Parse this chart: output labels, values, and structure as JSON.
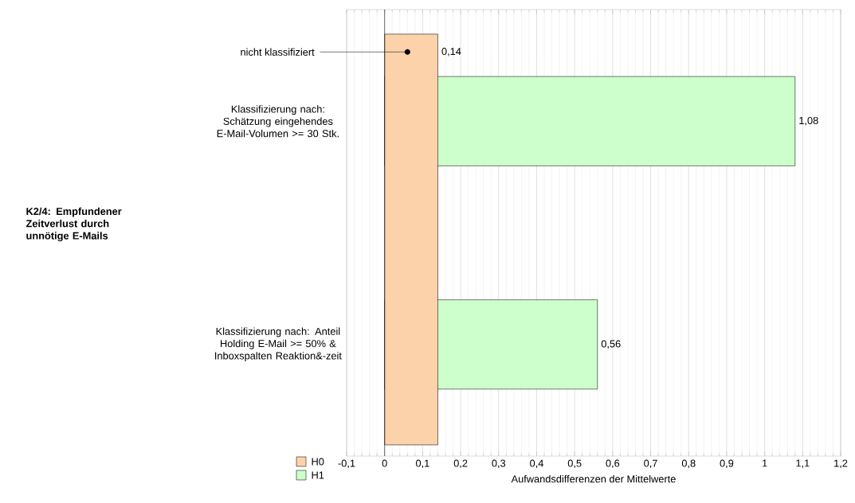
{
  "chart_data": {
    "type": "bar",
    "orientation": "horizontal",
    "xlabel": "Aufwandsdifferenzen der Mittelwerte",
    "categories": [
      "Klassifizierung nach: Schätzung eingehendes E-Mail-Volumen >= 30 Stk.",
      "Klassifizierung nach: Anteil Holding E-Mail >= 50% & Inboxspalten Reaktion&-zeit"
    ],
    "series": [
      {
        "name": "H1",
        "color": "#ccffcc",
        "values": [
          1.08,
          0.56
        ],
        "value_labels": [
          "1,08",
          "0,56"
        ]
      }
    ],
    "bands": [
      {
        "axis": "x",
        "from": 0,
        "to": 0.14,
        "label": "H0",
        "color": "#fcd2aa"
      }
    ],
    "annotations": [
      {
        "text": "nicht klassifiziert",
        "x": 0.06
      },
      {
        "text": "0,14",
        "x": 0.14
      },
      "K2/4: Empfundener Zeitverlust durch unnötige E-Mails"
    ],
    "xlim": [
      -0.1,
      1.2
    ],
    "xticks": [
      {
        "value": -0.1,
        "label": "-0,1"
      },
      0,
      {
        "value": 0.1,
        "label": "0,1"
      },
      {
        "value": 0.2,
        "label": "0,2"
      },
      {
        "value": 0.3,
        "label": "0,3"
      },
      {
        "value": 0.4,
        "label": "0,4"
      },
      {
        "value": 0.5,
        "label": "0,5"
      },
      {
        "value": 0.6,
        "label": "0,6"
      },
      {
        "value": 0.7,
        "label": "0,7"
      },
      {
        "value": 0.8,
        "label": "0,8"
      },
      {
        "value": 0.9,
        "label": "0,9"
      },
      1,
      {
        "value": 1.1,
        "label": "1,1"
      },
      {
        "value": 1.2,
        "label": "1,2"
      }
    ],
    "grid": "x",
    "legend": "bottom left"
  }
}
